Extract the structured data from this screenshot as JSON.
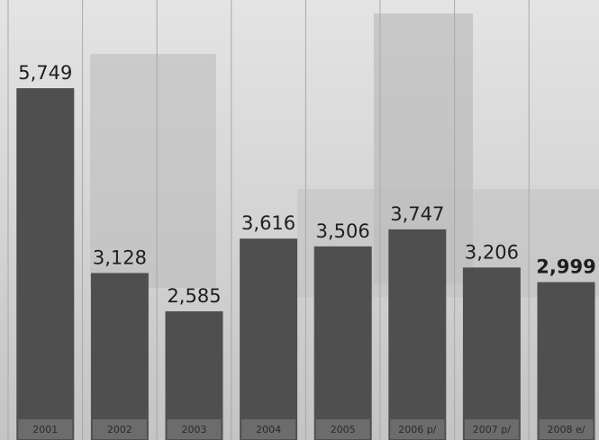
{
  "chart_data": {
    "type": "bar",
    "categories": [
      "2001",
      "2002",
      "2003",
      "2004",
      "2005",
      "2006 p/",
      "2007 p/",
      "2008 e/"
    ],
    "values": [
      5749,
      3128,
      2585,
      3616,
      3506,
      3747,
      3206,
      2999
    ],
    "value_labels": [
      "5,749",
      "3,128",
      "2,585",
      "3,616",
      "3,506",
      "3,747",
      "3,206",
      "2,999"
    ],
    "color": "#4f4f4f",
    "ylim": [
      760,
      7000
    ]
  }
}
